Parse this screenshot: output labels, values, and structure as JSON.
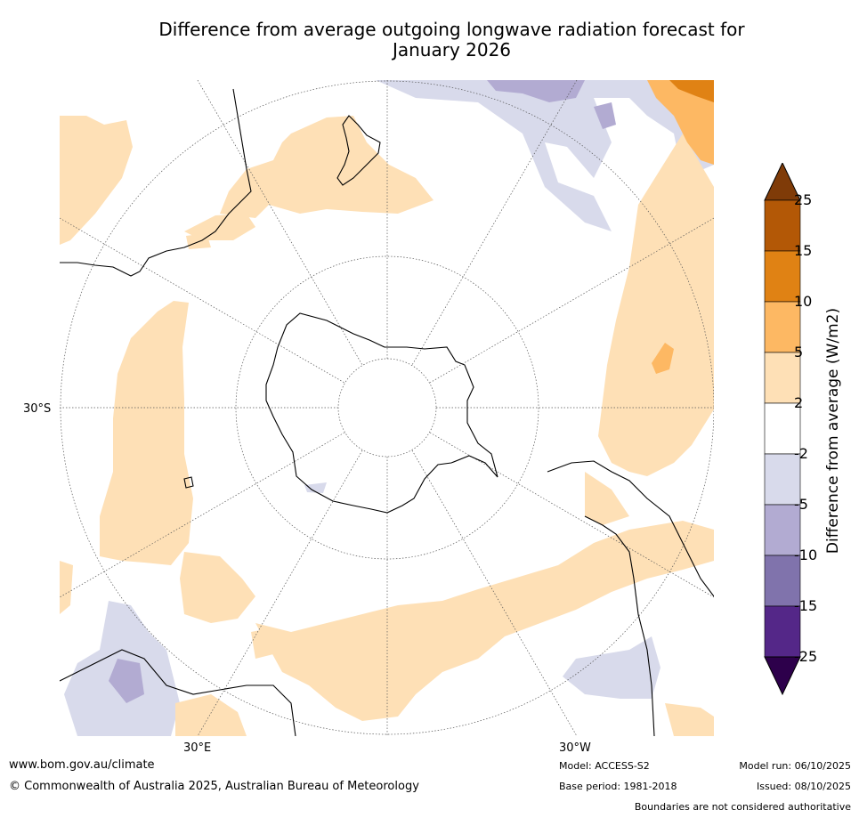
{
  "title_line1": "Difference from average outgoing longwave radiation forecast for",
  "title_line2": "January 2026",
  "map": {
    "projection": "south polar stereographic",
    "latitude_label": "30°S",
    "longitude_labels": [
      "30°E",
      "30°W"
    ]
  },
  "colorbar": {
    "title": "Difference from average (W/m2)",
    "levels": [
      "25",
      "15",
      "10",
      "5",
      "2",
      "-2",
      "-5",
      "-10",
      "-15",
      "-25"
    ],
    "colors": [
      "#7f3b08",
      "#b35806",
      "#e08214",
      "#fdb863",
      "#fee0b6",
      "#ffffff",
      "#d8daeb",
      "#b2abd2",
      "#8073ac",
      "#542788",
      "#2d004b"
    ]
  },
  "footer": {
    "website": "www.bom.gov.au/climate",
    "copyright": "© Commonwealth of Australia 2025, Australian Bureau of Meteorology",
    "model": "Model: ACCESS-S2",
    "base_period": "Base period: 1981-2018",
    "model_run": "Model run: 06/10/2025",
    "issued": "Issued: 08/10/2025",
    "disclaimer": "Boundaries are not considered authoritative"
  }
}
